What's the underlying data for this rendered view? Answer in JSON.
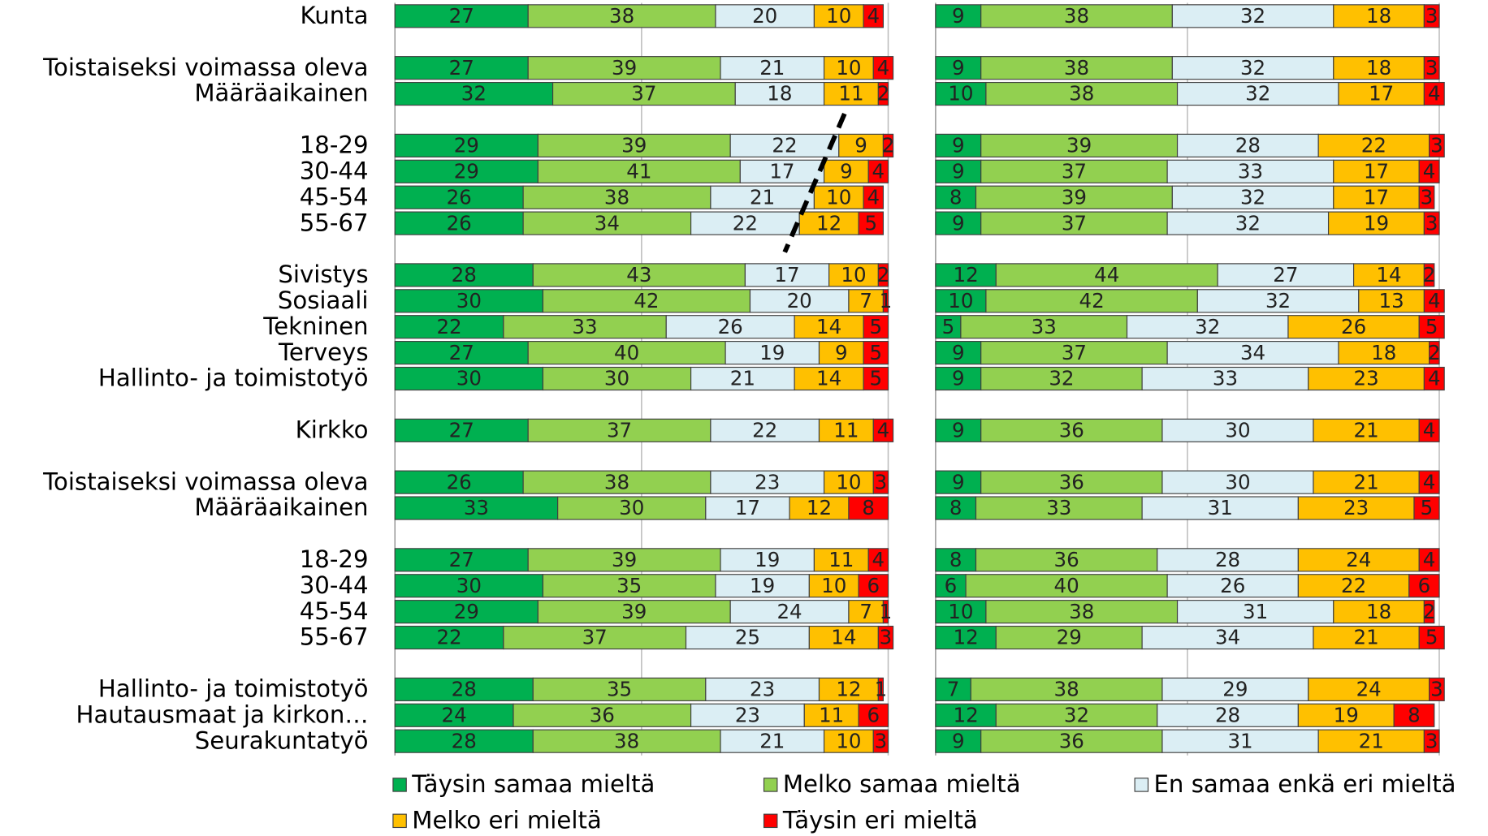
{
  "chart_data": {
    "type": "bar",
    "orientation": "horizontal",
    "stacked": true,
    "grid": true,
    "legend": "bottom",
    "xlim": [
      0,
      100
    ],
    "xticks": [
      0,
      50,
      100
    ],
    "categories": [
      "Kunta",
      null,
      "Toistaiseksi voimassa oleva",
      "Määräaikainen",
      null,
      "18-29",
      "30-44",
      "45-54",
      "55-67",
      null,
      "Sivistys",
      "Sosiaali",
      "Tekninen",
      "Terveys",
      "Hallinto- ja toimistotyö",
      null,
      "Kirkko",
      null,
      "Toistaiseksi voimassa oleva",
      "Määräaikainen",
      null,
      "18-29",
      "30-44",
      "45-54",
      "55-67",
      null,
      "Hallinto- ja toimistotyö",
      "Hautausmaat ja kirkon…",
      "Seurakuntatyö"
    ],
    "series": [
      {
        "name": "Täysin samaa mieltä",
        "color": "#00b050"
      },
      {
        "name": "Melko samaa mieltä",
        "color": "#92d050"
      },
      {
        "name": "En samaa enkä eri mieltä",
        "color": "#dbeef4"
      },
      {
        "name": "Melko eri mieltä",
        "color": "#ffc000"
      },
      {
        "name": "Täysin eri mieltä",
        "color": "#ff0000"
      }
    ],
    "panels": [
      {
        "series": [
          {
            "values": [
              27,
              null,
              27,
              32,
              null,
              29,
              29,
              26,
              26,
              null,
              28,
              30,
              22,
              27,
              30,
              null,
              27,
              null,
              26,
              33,
              null,
              27,
              30,
              29,
              22,
              null,
              28,
              24,
              28
            ]
          },
          {
            "values": [
              38,
              null,
              39,
              37,
              null,
              39,
              41,
              38,
              34,
              null,
              43,
              42,
              33,
              40,
              30,
              null,
              37,
              null,
              38,
              30,
              null,
              39,
              35,
              39,
              37,
              null,
              35,
              36,
              38
            ]
          },
          {
            "values": [
              20,
              null,
              21,
              18,
              null,
              22,
              17,
              21,
              22,
              null,
              17,
              20,
              26,
              19,
              21,
              null,
              22,
              null,
              23,
              17,
              null,
              19,
              19,
              24,
              25,
              null,
              23,
              23,
              21
            ]
          },
          {
            "values": [
              10,
              null,
              10,
              11,
              null,
              9,
              9,
              10,
              12,
              null,
              10,
              7,
              14,
              9,
              14,
              null,
              11,
              null,
              10,
              12,
              null,
              11,
              10,
              7,
              14,
              null,
              12,
              11,
              10
            ]
          },
          {
            "values": [
              4,
              null,
              4,
              2,
              null,
              2,
              4,
              4,
              5,
              null,
              2,
              1,
              5,
              5,
              5,
              null,
              4,
              null,
              3,
              8,
              null,
              4,
              6,
              1,
              3,
              null,
              1,
              6,
              3
            ]
          }
        ]
      },
      {
        "series": [
          {
            "values": [
              9,
              null,
              9,
              10,
              null,
              9,
              9,
              8,
              9,
              null,
              12,
              10,
              5,
              9,
              9,
              null,
              9,
              null,
              9,
              8,
              null,
              8,
              6,
              10,
              12,
              null,
              7,
              12,
              9
            ]
          },
          {
            "values": [
              38,
              null,
              38,
              38,
              null,
              39,
              37,
              39,
              37,
              null,
              44,
              42,
              33,
              37,
              32,
              null,
              36,
              null,
              36,
              33,
              null,
              36,
              40,
              38,
              29,
              null,
              38,
              32,
              36
            ]
          },
          {
            "values": [
              32,
              null,
              32,
              32,
              null,
              28,
              33,
              32,
              32,
              null,
              27,
              32,
              32,
              34,
              33,
              null,
              30,
              null,
              30,
              31,
              null,
              28,
              26,
              31,
              34,
              null,
              29,
              28,
              31
            ]
          },
          {
            "values": [
              18,
              null,
              18,
              17,
              null,
              22,
              17,
              17,
              19,
              null,
              14,
              13,
              26,
              18,
              23,
              null,
              21,
              null,
              21,
              23,
              null,
              24,
              22,
              18,
              21,
              null,
              24,
              19,
              21
            ]
          },
          {
            "values": [
              3,
              null,
              3,
              4,
              null,
              3,
              4,
              3,
              3,
              null,
              2,
              4,
              5,
              2,
              4,
              null,
              4,
              null,
              4,
              5,
              null,
              4,
              6,
              2,
              5,
              null,
              3,
              8,
              3
            ]
          }
        ]
      }
    ]
  }
}
